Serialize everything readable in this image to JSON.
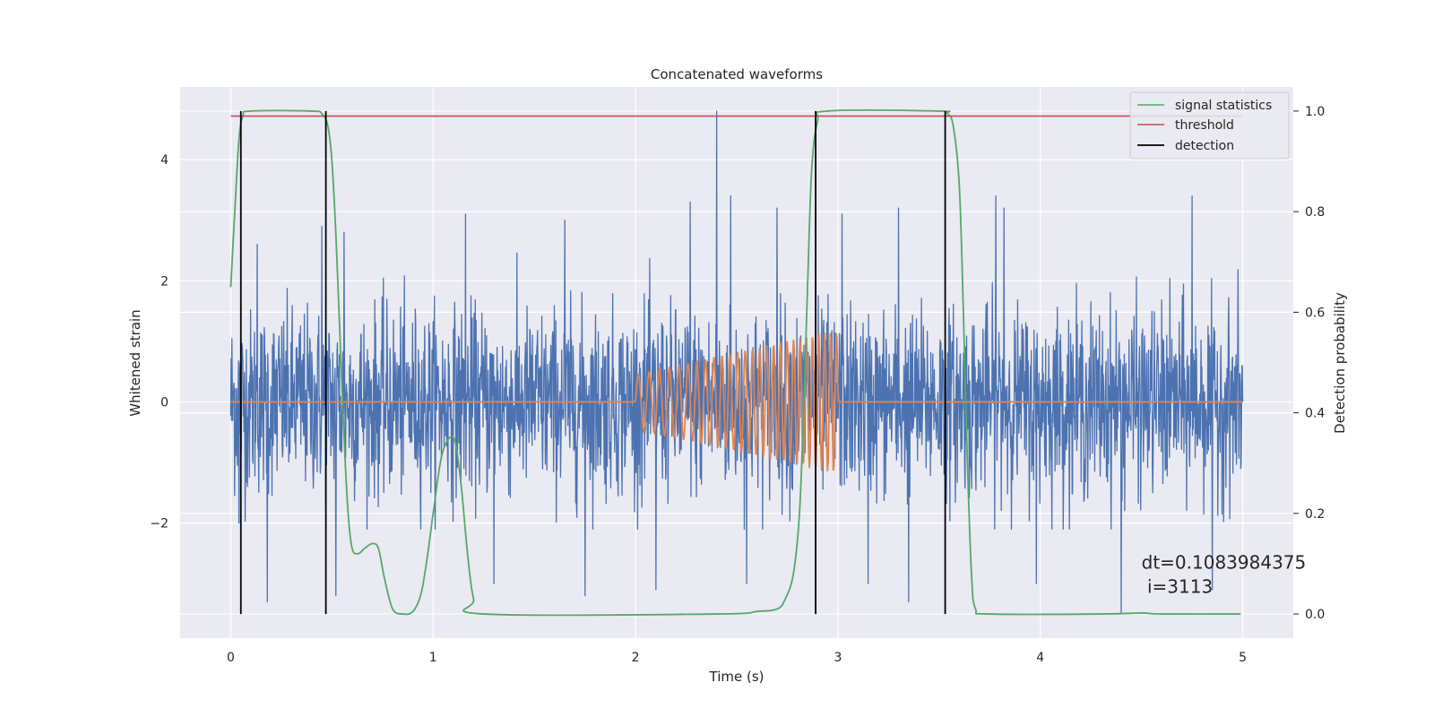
{
  "chart_data": {
    "type": "line",
    "title": "Concatenated waveforms",
    "xlabel": "Time (s)",
    "ylabel": "Whitened strain",
    "y2label": "Detection probability",
    "xlim": [
      -0.25,
      5.25
    ],
    "ylim": [
      -3.9,
      5.2
    ],
    "y2lim": [
      -0.048,
      1.048
    ],
    "xticks": [
      0,
      1,
      2,
      3,
      4,
      5
    ],
    "yticks": [
      -2,
      0,
      2,
      4
    ],
    "y2ticks": [
      0.0,
      0.2,
      0.4,
      0.6,
      0.8,
      1.0
    ],
    "xtick_labels": [
      "0",
      "1",
      "2",
      "3",
      "4",
      "5"
    ],
    "ytick_labels": [
      "−2",
      "0",
      "2",
      "4"
    ],
    "y2tick_labels": [
      "0.0",
      "0.2",
      "0.4",
      "0.6",
      "0.8",
      "1.0"
    ],
    "grid": true,
    "legend_position": "top-right",
    "annotation": {
      "line1": "dt=0.1083984375",
      "line2": " i=3113",
      "x": 4.5,
      "y": -2.75
    },
    "series": [
      {
        "name": "",
        "kind": "noise",
        "axis": "left",
        "color": "#4c72b0",
        "x_range": [
          0,
          5
        ],
        "typical_envelope": [
          -1.7,
          1.9
        ],
        "spike_points": [
          {
            "x": 0.04,
            "y": -2.0
          },
          {
            "x": 0.13,
            "y": 2.6
          },
          {
            "x": 0.18,
            "y": -3.3
          },
          {
            "x": 0.45,
            "y": 2.9
          },
          {
            "x": 0.52,
            "y": -3.2
          },
          {
            "x": 0.56,
            "y": 2.8
          },
          {
            "x": 1.16,
            "y": 3.1
          },
          {
            "x": 1.3,
            "y": -3.0
          },
          {
            "x": 1.65,
            "y": 3.0
          },
          {
            "x": 1.75,
            "y": -3.2
          },
          {
            "x": 2.1,
            "y": -3.1
          },
          {
            "x": 2.4,
            "y": 4.8
          },
          {
            "x": 2.27,
            "y": 3.3
          },
          {
            "x": 2.47,
            "y": 3.4
          },
          {
            "x": 2.55,
            "y": -3.0
          },
          {
            "x": 2.7,
            "y": 3.2
          },
          {
            "x": 3.02,
            "y": 3.1
          },
          {
            "x": 3.15,
            "y": -3.0
          },
          {
            "x": 3.3,
            "y": 3.2
          },
          {
            "x": 3.35,
            "y": -3.3
          },
          {
            "x": 3.78,
            "y": 3.4
          },
          {
            "x": 3.82,
            "y": 3.2
          },
          {
            "x": 3.98,
            "y": -3.0
          },
          {
            "x": 4.4,
            "y": -3.5
          },
          {
            "x": 4.75,
            "y": 3.4
          },
          {
            "x": 4.85,
            "y": -3.1
          },
          {
            "x": 4.99,
            "y": -1.1
          }
        ]
      },
      {
        "name": "",
        "kind": "chirp",
        "axis": "left",
        "color": "#dd8452",
        "x_range": [
          0,
          5
        ],
        "chirp_start": 2.0,
        "chirp_end": 3.0,
        "amp_start": 0.45,
        "amp_end": 1.2,
        "freq_start": 18,
        "freq_end": 35
      },
      {
        "name": "signal statistics",
        "kind": "probability",
        "axis": "right",
        "color": "#55a868",
        "points": [
          [
            0.0,
            0.65
          ],
          [
            0.02,
            0.8
          ],
          [
            0.04,
            0.94
          ],
          [
            0.06,
            0.99
          ],
          [
            0.1,
            1.0
          ],
          [
            0.4,
            1.0
          ],
          [
            0.45,
            0.995
          ],
          [
            0.48,
            0.97
          ],
          [
            0.5,
            0.9
          ],
          [
            0.52,
            0.75
          ],
          [
            0.54,
            0.55
          ],
          [
            0.56,
            0.35
          ],
          [
            0.58,
            0.2
          ],
          [
            0.6,
            0.13
          ],
          [
            0.63,
            0.12
          ],
          [
            0.66,
            0.13
          ],
          [
            0.7,
            0.14
          ],
          [
            0.73,
            0.13
          ],
          [
            0.76,
            0.07
          ],
          [
            0.8,
            0.01
          ],
          [
            0.85,
            0.0
          ],
          [
            0.9,
            0.005
          ],
          [
            0.94,
            0.04
          ],
          [
            0.97,
            0.11
          ],
          [
            1.0,
            0.2
          ],
          [
            1.04,
            0.31
          ],
          [
            1.08,
            0.35
          ],
          [
            1.11,
            0.34
          ],
          [
            1.14,
            0.25
          ],
          [
            1.17,
            0.12
          ],
          [
            1.2,
            0.03
          ],
          [
            1.25,
            0.0
          ],
          [
            2.4,
            0.0
          ],
          [
            2.6,
            0.005
          ],
          [
            2.7,
            0.01
          ],
          [
            2.74,
            0.03
          ],
          [
            2.78,
            0.08
          ],
          [
            2.81,
            0.2
          ],
          [
            2.83,
            0.4
          ],
          [
            2.85,
            0.65
          ],
          [
            2.87,
            0.88
          ],
          [
            2.9,
            0.98
          ],
          [
            2.95,
            1.0
          ],
          [
            3.5,
            1.0
          ],
          [
            3.54,
            0.995
          ],
          [
            3.57,
            0.97
          ],
          [
            3.6,
            0.85
          ],
          [
            3.62,
            0.6
          ],
          [
            3.64,
            0.3
          ],
          [
            3.66,
            0.08
          ],
          [
            3.68,
            0.01
          ],
          [
            3.75,
            0.0
          ],
          [
            4.3,
            0.0
          ],
          [
            4.5,
            0.002
          ],
          [
            4.6,
            0.0
          ],
          [
            4.99,
            0.0
          ]
        ]
      },
      {
        "name": "threshold",
        "kind": "hline",
        "axis": "right",
        "color": "#c44e52",
        "value": 0.99,
        "x_range": [
          0,
          5
        ]
      },
      {
        "name": "detection",
        "kind": "vlines",
        "axis": "right",
        "color": "#000000",
        "x": [
          0.05,
          0.47,
          2.89,
          3.53
        ],
        "y_range": [
          0,
          1.0
        ]
      }
    ]
  }
}
